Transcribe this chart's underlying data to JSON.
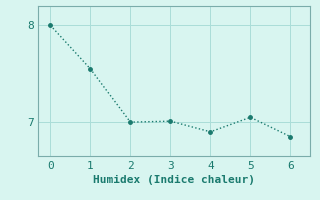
{
  "x": [
    0,
    1,
    2,
    3,
    4,
    5,
    6
  ],
  "y": [
    8.0,
    7.55,
    7.0,
    7.01,
    6.9,
    7.05,
    6.85
  ],
  "line_color": "#1a7a6e",
  "marker_color": "#1a7a6e",
  "bg_color": "#d8f5f0",
  "grid_color": "#aaddd8",
  "spine_color": "#7aacaa",
  "xlabel": "Humidex (Indice chaleur)",
  "xlabel_color": "#1a7a6e",
  "tick_color": "#1a7a6e",
  "xlim": [
    -0.3,
    6.5
  ],
  "ylim": [
    6.65,
    8.2
  ],
  "yticks": [
    7,
    8
  ],
  "xticks": [
    0,
    1,
    2,
    3,
    4,
    5,
    6
  ],
  "marker_size": 2.5,
  "line_width": 1.0,
  "font_family": "monospace",
  "xlabel_fontsize": 8,
  "tick_fontsize": 8
}
